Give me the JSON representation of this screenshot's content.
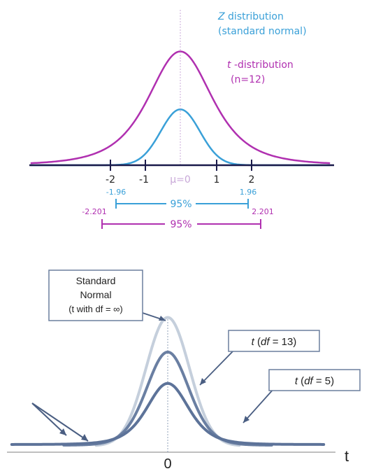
{
  "top": {
    "z_label_line1": "Z distribution",
    "z_label_line2": "(standard normal)",
    "t_label_line1": "t -distribution",
    "t_label_line2": "(n=12)",
    "ticks": [
      "-2",
      "-1",
      "μ=0",
      "1",
      "2"
    ],
    "z_interval": {
      "low": "-1.96",
      "high": "1.96",
      "label": "95%"
    },
    "t_interval": {
      "low": "-2.201",
      "high": "2.201",
      "label": "95%"
    },
    "colors": {
      "z": "#3aa0d8",
      "t": "#b030b0",
      "axis": "#1a1a4a",
      "mu": "#c8a8d8"
    }
  },
  "bottom": {
    "normal_box_line1": "Standard",
    "normal_box_line2": "Normal",
    "normal_box_line3": "(t with df = ∞)",
    "t13_label": "t  (df = 13)",
    "t5_label": "t  (df = 5)",
    "x_zero": "0",
    "axis_label": "t",
    "colors": {
      "normal": "#c5cfdc",
      "t13": "#6a7fa2",
      "t5": "#5d7399",
      "box_border": "#6b7f9e",
      "axis": "#999999"
    }
  },
  "chart_data": [
    {
      "type": "line",
      "x": [
        -4,
        -3,
        -2,
        -1,
        0,
        1,
        2,
        3,
        4
      ],
      "xticks": [
        "-2",
        "-1",
        "μ=0",
        "1",
        "2"
      ],
      "series": [
        {
          "name": "Z distribution (standard normal)",
          "curve": "normal"
        },
        {
          "name": "t-distribution (n=12)",
          "curve": "t"
        }
      ],
      "annotations": [
        {
          "text": "95%",
          "from": -1.96,
          "to": 1.96
        },
        {
          "text": "95%",
          "from": -2.201,
          "to": 2.201
        }
      ]
    },
    {
      "type": "line",
      "series": [
        {
          "name": "Standard Normal (t with df = ∞)",
          "curve": "normal"
        },
        {
          "name": "t (df = 13)",
          "curve": "t"
        },
        {
          "name": "t (df = 5)",
          "curve": "t"
        }
      ],
      "xlabel": "t",
      "xticks": [
        "0"
      ]
    }
  ]
}
